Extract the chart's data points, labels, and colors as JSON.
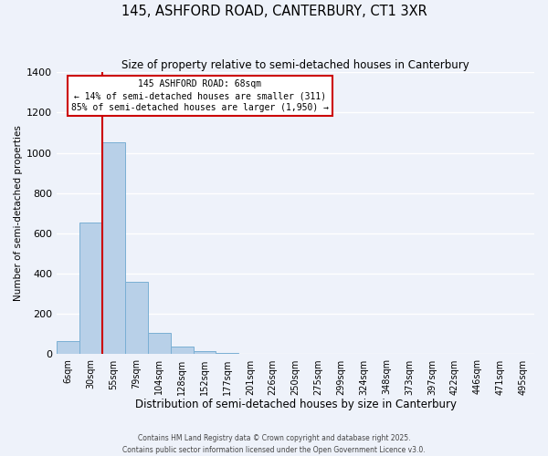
{
  "title": "145, ASHFORD ROAD, CANTERBURY, CT1 3XR",
  "subtitle": "Size of property relative to semi-detached houses in Canterbury",
  "xlabel": "Distribution of semi-detached houses by size in Canterbury",
  "ylabel": "Number of semi-detached properties",
  "bar_labels": [
    "6sqm",
    "30sqm",
    "55sqm",
    "79sqm",
    "104sqm",
    "128sqm",
    "152sqm",
    "177sqm",
    "201sqm",
    "226sqm",
    "250sqm",
    "275sqm",
    "299sqm",
    "324sqm",
    "348sqm",
    "373sqm",
    "397sqm",
    "422sqm",
    "446sqm",
    "471sqm",
    "495sqm"
  ],
  "bar_values": [
    65,
    655,
    1050,
    360,
    105,
    40,
    15,
    5,
    2,
    0,
    0,
    0,
    0,
    0,
    0,
    0,
    0,
    0,
    0,
    0,
    0
  ],
  "bar_color": "#b8d0e8",
  "bar_edge_color": "#7aafd4",
  "property_line_x": 1.5,
  "annotation_line1": "145 ASHFORD ROAD: 68sqm",
  "annotation_line2": "← 14% of semi-detached houses are smaller (311)",
  "annotation_line3": "85% of semi-detached houses are larger (1,950) →",
  "box_face_color": "#ffffff",
  "box_edge_color": "#cc0000",
  "vline_color": "#cc0000",
  "background_color": "#eef2fa",
  "ylim": [
    0,
    1400
  ],
  "yticks": [
    0,
    200,
    400,
    600,
    800,
    1000,
    1200,
    1400
  ],
  "grid_color": "#ffffff",
  "footer_line1": "Contains HM Land Registry data © Crown copyright and database right 2025.",
  "footer_line2": "Contains public sector information licensed under the Open Government Licence v3.0."
}
